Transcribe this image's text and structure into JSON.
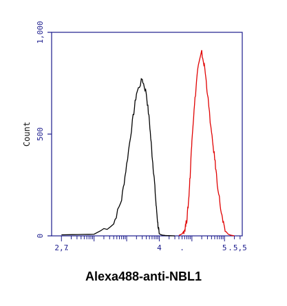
{
  "chart_data": {
    "type": "line",
    "title": "",
    "xlabel": "Alexa488-anti-NBL1",
    "ylabel": "Count",
    "x_scale": "log",
    "xlim": [
      0.5,
      350000
    ],
    "ylim": [
      0,
      1000
    ],
    "x_tick_labels": [
      {
        "value": 1,
        "label": "2,7"
      },
      {
        "value": 1.5,
        "label": "."
      },
      {
        "value": 1000,
        "label": "4"
      },
      {
        "value": 5000,
        "label": "."
      },
      {
        "value": 100000,
        "label": "5"
      },
      {
        "value": 150000,
        "label": "."
      },
      {
        "value": 300000,
        "label": "5,5"
      }
    ],
    "y_ticks": [
      0,
      500,
      1000
    ],
    "y_tick_labels": [
      "0",
      "500",
      "1,000"
    ],
    "grid": false,
    "colors": {
      "axis": "#1a1a8c",
      "control": "#000000",
      "stained": "#e00000"
    },
    "series": [
      {
        "color": "#000000",
        "x": [
          1,
          10,
          40,
          70,
          100,
          150,
          200,
          300,
          400,
          500,
          600,
          700,
          800,
          900,
          1000,
          1200,
          1500,
          2000,
          3000
        ],
        "y": [
          5,
          8,
          60,
          180,
          350,
          560,
          700,
          770,
          700,
          560,
          400,
          280,
          150,
          60,
          10,
          4,
          2,
          1,
          0
        ]
      },
      {
        "color": "#e00000",
        "x": [
          4000,
          5000,
          6000,
          7000,
          8000,
          9000,
          10000,
          12000,
          15000,
          20000,
          25000,
          30000,
          40000,
          50000,
          60000,
          80000,
          100000,
          130000,
          150000,
          200000
        ],
        "y": [
          2,
          10,
          30,
          80,
          180,
          320,
          480,
          640,
          820,
          900,
          820,
          700,
          500,
          380,
          260,
          110,
          30,
          8,
          4,
          0
        ]
      }
    ]
  }
}
